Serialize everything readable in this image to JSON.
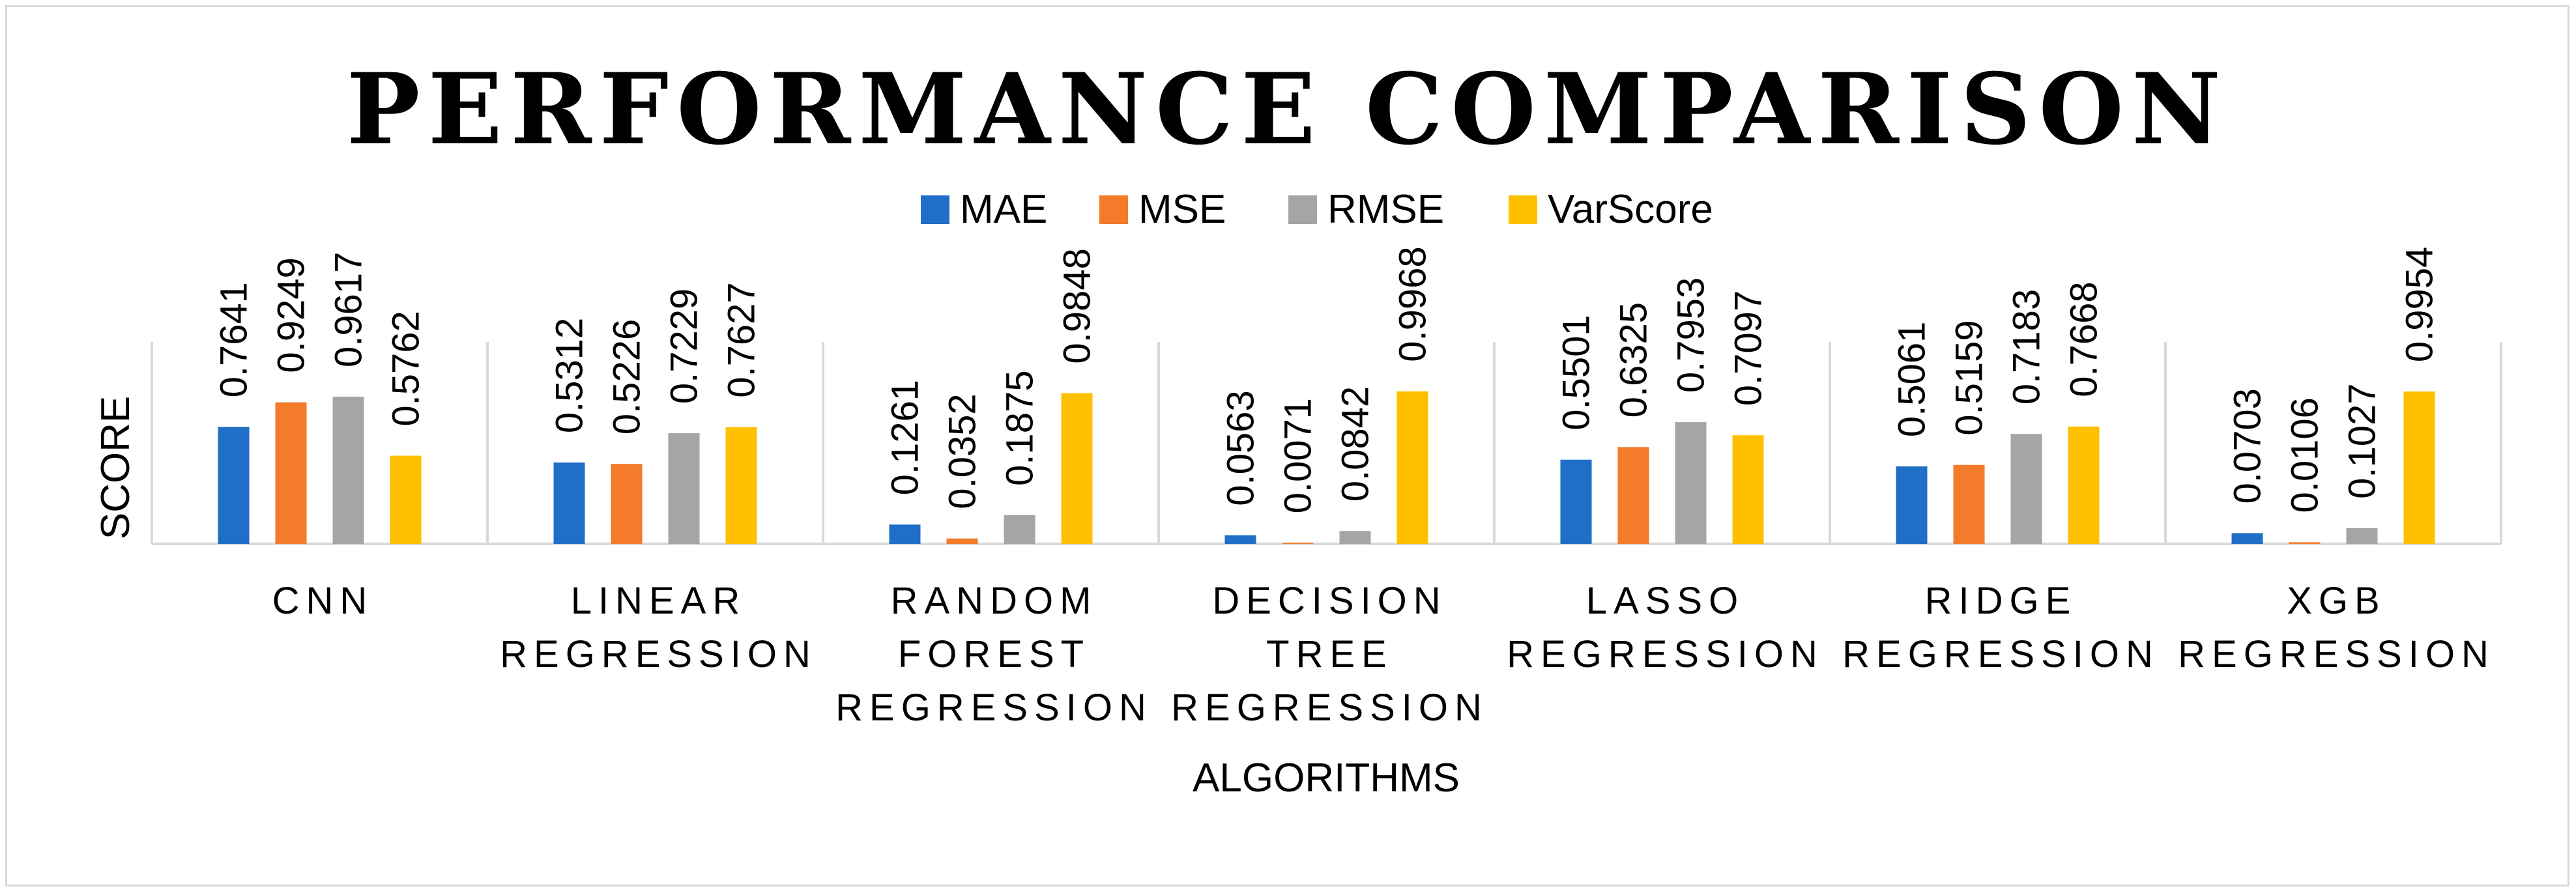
{
  "chart_data": {
    "type": "bar",
    "title": "PERFORMANCE COMPARISON",
    "xlabel": "ALGORITHMS",
    "ylabel": "SCORE",
    "categories": [
      [
        "CNN"
      ],
      [
        "LINEAR",
        "REGRESSION"
      ],
      [
        "RANDOM",
        "FOREST",
        "REGRESSION"
      ],
      [
        "DECISION",
        "TREE",
        "REGRESSION"
      ],
      [
        "LASSO",
        "REGRESSION"
      ],
      [
        "RIDGE",
        "REGRESSION"
      ],
      [
        "XGB",
        "REGRESSION"
      ]
    ],
    "series": [
      {
        "name": "MAE",
        "color": "#1f6fc6",
        "values": [
          0.7641,
          0.5312,
          0.1261,
          0.0563,
          0.5501,
          0.5061,
          0.0703
        ]
      },
      {
        "name": "MSE",
        "color": "#f47b2a",
        "values": [
          0.9249,
          0.5226,
          0.0352,
          0.0071,
          0.6325,
          0.5159,
          0.0106
        ]
      },
      {
        "name": "RMSE",
        "color": "#a5a5a5",
        "values": [
          0.9617,
          0.7229,
          0.1875,
          0.0842,
          0.7953,
          0.7183,
          0.1027
        ]
      },
      {
        "name": "VarScore",
        "color": "#ffc000",
        "values": [
          0.5762,
          0.7627,
          0.9848,
          0.9968,
          0.7097,
          0.7668,
          0.9954
        ]
      }
    ],
    "data_labels": [
      [
        "0.7641",
        "0.5312",
        "0.1261",
        "0.0563",
        "0.5501",
        "0.5061",
        "0.0703"
      ],
      [
        "0.9249",
        "0.5226",
        "0.0352",
        "0.0071",
        "0.6325",
        "0.5159",
        "0.0106"
      ],
      [
        "0.9617",
        "0.7229",
        "0.1875",
        "0.0842",
        "0.7953",
        "0.7183",
        "0.1027"
      ],
      [
        "0.5762",
        "0.7627",
        "0.9848",
        "0.9968",
        "0.7097",
        "0.7668",
        "0.9954"
      ]
    ],
    "ylim": [
      0,
      1
    ],
    "legend_position": "top",
    "grid": false
  }
}
